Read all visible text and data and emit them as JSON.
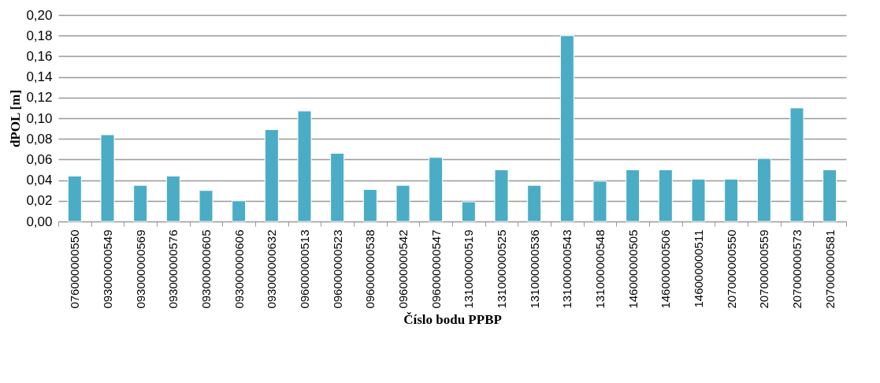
{
  "chart_data": {
    "type": "bar",
    "xlabel": "Číslo bodu PPBP",
    "ylabel": "dPOL [m]",
    "categories": [
      "076000000550",
      "093000000549",
      "093000000569",
      "093000000576",
      "093000000605",
      "093000000606",
      "093000000632",
      "096000000513",
      "096000000523",
      "096000000538",
      "096000000542",
      "096000000547",
      "131000000519",
      "131000000525",
      "131000000536",
      "131000000543",
      "131000000548",
      "146000000505",
      "146000000506",
      "146000000511",
      "207000000550",
      "207000000559",
      "207000000573",
      "207000000581"
    ],
    "values": [
      0.044,
      0.084,
      0.035,
      0.044,
      0.03,
      0.02,
      0.089,
      0.107,
      0.066,
      0.031,
      0.035,
      0.062,
      0.019,
      0.05,
      0.035,
      0.18,
      0.039,
      0.05,
      0.05,
      0.041,
      0.041,
      0.061,
      0.11,
      0.05
    ],
    "color": "#4bacc6",
    "ylim": [
      0,
      0.2
    ],
    "yticks": [
      {
        "value": 0,
        "label": "0,00"
      },
      {
        "value": 0.02,
        "label": "0,02"
      },
      {
        "value": 0.04,
        "label": "0,04"
      },
      {
        "value": 0.06,
        "label": "0,06"
      },
      {
        "value": 0.08,
        "label": "0,08"
      },
      {
        "value": 0.1,
        "label": "0,10"
      },
      {
        "value": 0.12,
        "label": "0,12"
      },
      {
        "value": 0.14,
        "label": "0,14"
      },
      {
        "value": 0.16,
        "label": "0,16"
      },
      {
        "value": 0.18,
        "label": "0,18"
      },
      {
        "value": 0.2,
        "label": "0,20"
      }
    ],
    "grid": "y"
  }
}
